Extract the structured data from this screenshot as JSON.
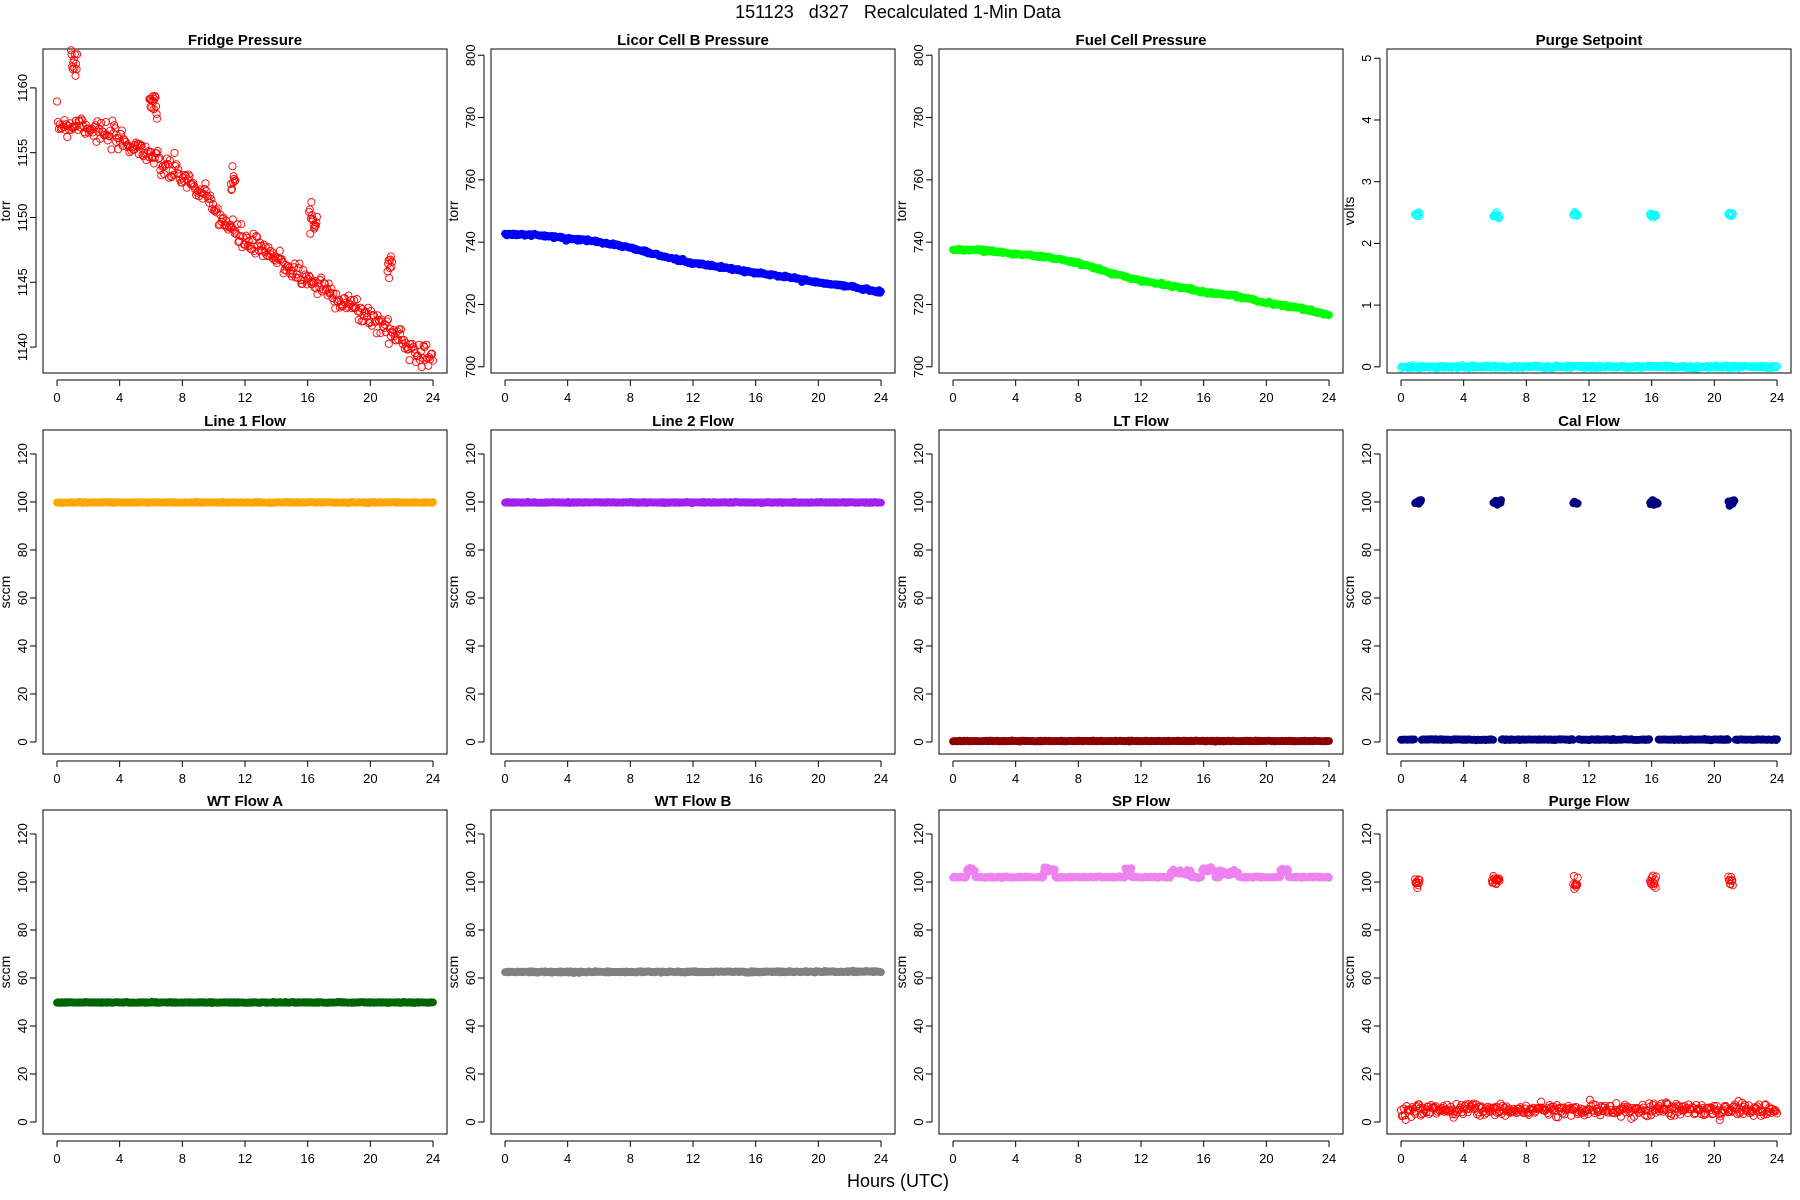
{
  "page": {
    "title": "151123   d327   Recalculated 1-Min Data",
    "xlabel": "Hours (UTC)"
  },
  "chart_data": [
    {
      "type": "scatter",
      "title": "Fridge Pressure",
      "ylabel": "torr",
      "color": "#ff0000",
      "marker": "open-circle",
      "xlim": [
        0,
        24
      ],
      "ylim": [
        1138,
        1163
      ],
      "xticks": [
        0,
        4,
        8,
        12,
        16,
        20,
        24
      ],
      "yticks": [
        1140,
        1145,
        1150,
        1155,
        1160
      ],
      "trend": [
        [
          0,
          1157.2
        ],
        [
          0.9,
          1157.1
        ],
        [
          1.5,
          1157.3
        ],
        [
          3,
          1156.4
        ],
        [
          5,
          1155.5
        ],
        [
          5.9,
          1155.0
        ],
        [
          6.3,
          1154.2
        ],
        [
          8,
          1153.2
        ],
        [
          9.5,
          1151.5
        ],
        [
          11,
          1149.2
        ],
        [
          12,
          1148.2
        ],
        [
          14,
          1146.8
        ],
        [
          16,
          1145.2
        ],
        [
          17,
          1144.6
        ],
        [
          19,
          1143.0
        ],
        [
          20.5,
          1141.9
        ],
        [
          21.2,
          1141.3
        ],
        [
          22,
          1140.6
        ],
        [
          23,
          1139.6
        ],
        [
          24,
          1139.2
        ]
      ],
      "spikes": [
        {
          "x": [
            0.9,
            1.3
          ],
          "y": 1161.8
        },
        {
          "x": [
            5.9,
            6.4
          ],
          "y": 1159.2
        },
        {
          "x": [
            11.1,
            11.4
          ],
          "y": 1153.0
        },
        {
          "x": [
            16.1,
            16.6
          ],
          "y": 1149.8
        },
        {
          "x": [
            21.1,
            21.4
          ],
          "y": 1146.4
        }
      ],
      "noise": 0.45
    },
    {
      "type": "scatter",
      "title": "Licor Cell B Pressure",
      "ylabel": "torr",
      "color": "#0000ff",
      "marker": "filled-circle",
      "xlim": [
        0,
        24
      ],
      "ylim": [
        698,
        802
      ],
      "xticks": [
        0,
        4,
        8,
        12,
        16,
        20,
        24
      ],
      "yticks": [
        700,
        720,
        740,
        760,
        780,
        800
      ],
      "trend": [
        [
          0,
          742.6
        ],
        [
          2,
          742.3
        ],
        [
          4,
          741.2
        ],
        [
          6,
          740.2
        ],
        [
          8,
          738.2
        ],
        [
          10,
          735.5
        ],
        [
          12,
          733.3
        ],
        [
          14,
          731.8
        ],
        [
          16,
          730.1
        ],
        [
          18,
          728.9
        ],
        [
          20,
          727.0
        ],
        [
          22,
          725.8
        ],
        [
          24,
          724.0
        ]
      ],
      "spikes": [],
      "noise": 0.2
    },
    {
      "type": "scatter",
      "title": "Fuel Cell Pressure",
      "ylabel": "torr",
      "color": "#00ff00",
      "marker": "filled-circle",
      "xlim": [
        0,
        24
      ],
      "ylim": [
        698,
        802
      ],
      "xticks": [
        0,
        4,
        8,
        12,
        16,
        20,
        24
      ],
      "yticks": [
        700,
        720,
        740,
        760,
        780,
        800
      ],
      "trend": [
        [
          0,
          737.6
        ],
        [
          2,
          737.4
        ],
        [
          4,
          736.2
        ],
        [
          6,
          735.2
        ],
        [
          8,
          733.3
        ],
        [
          10,
          730.2
        ],
        [
          12,
          727.6
        ],
        [
          14,
          726.0
        ],
        [
          16,
          724.0
        ],
        [
          18,
          722.8
        ],
        [
          20,
          720.5
        ],
        [
          22,
          719.0
        ],
        [
          24,
          716.5
        ]
      ],
      "spikes": [],
      "noise": 0.2
    },
    {
      "type": "scatter",
      "title": "Purge Setpoint",
      "ylabel": "volts",
      "color": "#00ffff",
      "marker": "open-circle",
      "xlim": [
        0,
        24
      ],
      "ylim": [
        -0.1,
        5.15
      ],
      "xticks": [
        0,
        4,
        8,
        12,
        16,
        20,
        24
      ],
      "yticks": [
        0,
        1,
        2,
        3,
        4,
        5
      ],
      "trend": [
        [
          0,
          0.0
        ],
        [
          24,
          0.0
        ]
      ],
      "spikes": [
        {
          "x": [
            0.9,
            1.2
          ],
          "y": 2.47
        },
        {
          "x": [
            5.9,
            6.3
          ],
          "y": 2.45
        },
        {
          "x": [
            11.0,
            11.3
          ],
          "y": 2.47
        },
        {
          "x": [
            15.9,
            16.3
          ],
          "y": 2.45
        },
        {
          "x": [
            20.9,
            21.2
          ],
          "y": 2.47
        }
      ],
      "noise": 0.01
    },
    {
      "type": "scatter",
      "title": "Line 1 Flow",
      "ylabel": "sccm",
      "color": "#ffa500",
      "marker": "filled-circle",
      "xlim": [
        0,
        24
      ],
      "ylim": [
        -5,
        130
      ],
      "xticks": [
        0,
        4,
        8,
        12,
        16,
        20,
        24
      ],
      "yticks": [
        0,
        20,
        40,
        60,
        80,
        100,
        120
      ],
      "trend": [
        [
          0,
          99.8
        ],
        [
          24,
          99.8
        ]
      ],
      "spikes": [],
      "noise": 0.1
    },
    {
      "type": "scatter",
      "title": "Line 2 Flow",
      "ylabel": "sccm",
      "color": "#a020f0",
      "marker": "filled-circle",
      "xlim": [
        0,
        24
      ],
      "ylim": [
        -5,
        130
      ],
      "xticks": [
        0,
        4,
        8,
        12,
        16,
        20,
        24
      ],
      "yticks": [
        0,
        20,
        40,
        60,
        80,
        100,
        120
      ],
      "trend": [
        [
          0,
          99.8
        ],
        [
          24,
          99.8
        ]
      ],
      "spikes": [],
      "noise": 0.1
    },
    {
      "type": "scatter",
      "title": "LT Flow",
      "ylabel": "sccm",
      "color": "#8b0000",
      "marker": "filled-circle",
      "xlim": [
        0,
        24
      ],
      "ylim": [
        -5,
        130
      ],
      "xticks": [
        0,
        4,
        8,
        12,
        16,
        20,
        24
      ],
      "yticks": [
        0,
        20,
        40,
        60,
        80,
        100,
        120
      ],
      "trend": [
        [
          0,
          0.4
        ],
        [
          24,
          0.4
        ]
      ],
      "spikes": [],
      "noise": 0.1
    },
    {
      "type": "scatter",
      "title": "Cal Flow",
      "ylabel": "sccm",
      "color": "#000080",
      "marker": "filled-circle",
      "xlim": [
        0,
        24
      ],
      "ylim": [
        -5,
        130
      ],
      "xticks": [
        0,
        4,
        8,
        12,
        16,
        20,
        24
      ],
      "yticks": [
        0,
        20,
        40,
        60,
        80,
        100,
        120
      ],
      "trend": [
        [
          0,
          1.0
        ],
        [
          24,
          1.0
        ]
      ],
      "gaps": [
        [
          0.9,
          1.3
        ],
        [
          5.9,
          6.4
        ],
        [
          11.0,
          11.3
        ],
        [
          15.9,
          16.4
        ],
        [
          20.9,
          21.3
        ]
      ],
      "spikes": [
        {
          "x": [
            0.9,
            1.3
          ],
          "y": 99.8
        },
        {
          "x": [
            5.9,
            6.4
          ],
          "y": 99.8
        },
        {
          "x": [
            11.0,
            11.3
          ],
          "y": 99.8
        },
        {
          "x": [
            15.9,
            16.4
          ],
          "y": 99.8
        },
        {
          "x": [
            20.9,
            21.3
          ],
          "y": 99.8
        }
      ],
      "noise": 0.1
    },
    {
      "type": "scatter",
      "title": "WT Flow A",
      "ylabel": "sccm",
      "color": "#006400",
      "marker": "filled-circle",
      "xlim": [
        0,
        24
      ],
      "ylim": [
        -5,
        130
      ],
      "xticks": [
        0,
        4,
        8,
        12,
        16,
        20,
        24
      ],
      "yticks": [
        0,
        20,
        40,
        60,
        80,
        100,
        120
      ],
      "trend": [
        [
          0,
          49.8
        ],
        [
          24,
          49.8
        ]
      ],
      "spikes": [],
      "noise": 0.1
    },
    {
      "type": "scatter",
      "title": "WT Flow B",
      "ylabel": "sccm",
      "color": "#808080",
      "marker": "filled-circle",
      "xlim": [
        0,
        24
      ],
      "ylim": [
        -5,
        130
      ],
      "xticks": [
        0,
        4,
        8,
        12,
        16,
        20,
        24
      ],
      "yticks": [
        0,
        20,
        40,
        60,
        80,
        100,
        120
      ],
      "trend": [
        [
          0,
          62.5
        ],
        [
          24,
          62.6
        ]
      ],
      "spikes": [],
      "noise": 0.15
    },
    {
      "type": "scatter",
      "title": "SP Flow",
      "ylabel": "sccm",
      "color": "#ee82ee",
      "marker": "filled-circle",
      "xlim": [
        0,
        24
      ],
      "ylim": [
        -5,
        130
      ],
      "xticks": [
        0,
        4,
        8,
        12,
        16,
        20,
        24
      ],
      "yticks": [
        0,
        20,
        40,
        60,
        80,
        100,
        120
      ],
      "trend": [
        [
          0,
          102.0
        ],
        [
          24,
          102.0
        ]
      ],
      "gaps": [
        [
          0.9,
          1.4
        ],
        [
          5.8,
          6.5
        ],
        [
          11.0,
          11.4
        ],
        [
          13.9,
          15.2
        ],
        [
          15.9,
          16.7
        ],
        [
          17.0,
          18.2
        ],
        [
          20.9,
          21.4
        ]
      ],
      "spikes": [
        {
          "x": [
            0.9,
            1.4
          ],
          "y": 105.0
        },
        {
          "x": [
            5.8,
            6.5
          ],
          "y": 105.0
        },
        {
          "x": [
            11.0,
            11.4
          ],
          "y": 105.0
        },
        {
          "x": [
            13.9,
            15.2
          ],
          "y": 103.8
        },
        {
          "x": [
            15.9,
            16.7
          ],
          "y": 105.0
        },
        {
          "x": [
            17.0,
            18.2
          ],
          "y": 103.8
        },
        {
          "x": [
            20.9,
            21.4
          ],
          "y": 105.0
        }
      ],
      "noise": 0.15
    },
    {
      "type": "scatter",
      "title": "Purge Flow",
      "ylabel": "sccm",
      "color": "#ff0000",
      "marker": "open-circle",
      "xlim": [
        0,
        24
      ],
      "ylim": [
        -5,
        130
      ],
      "xticks": [
        0,
        4,
        8,
        12,
        16,
        20,
        24
      ],
      "yticks": [
        0,
        20,
        40,
        60,
        80,
        100,
        120
      ],
      "trend": [
        [
          0,
          5.0
        ],
        [
          24,
          5.0
        ]
      ],
      "spikes": [
        {
          "x": [
            0.9,
            1.2
          ],
          "y": 100.0
        },
        {
          "x": [
            5.8,
            6.3
          ],
          "y": 100.0
        },
        {
          "x": [
            11.0,
            11.3
          ],
          "y": 100.0
        },
        {
          "x": [
            15.9,
            16.3
          ],
          "y": 100.0
        },
        {
          "x": [
            20.9,
            21.2
          ],
          "y": 100.0
        }
      ],
      "noise": 1.4
    }
  ]
}
